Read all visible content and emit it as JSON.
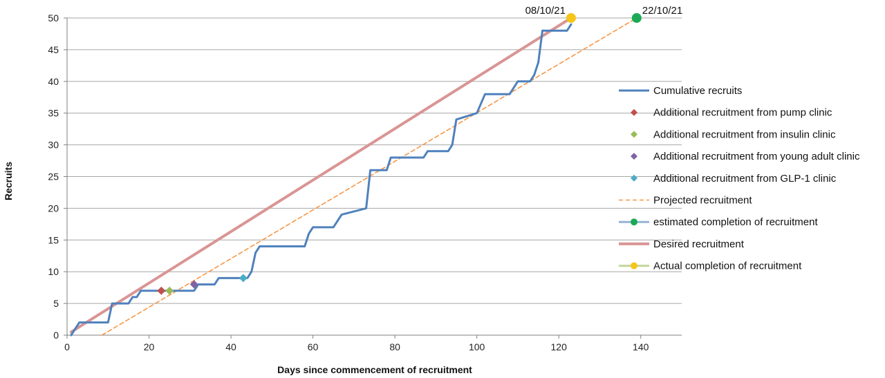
{
  "chart_data": {
    "type": "line",
    "title": "",
    "xlabel": "Days since commencement of recruitment",
    "ylabel": "Recruits",
    "xlim": [
      0,
      150
    ],
    "ylim": [
      0,
      50
    ],
    "xticks": [
      0,
      20,
      40,
      60,
      80,
      100,
      120,
      140
    ],
    "yticks": [
      0,
      5,
      10,
      15,
      20,
      25,
      30,
      35,
      40,
      45,
      50
    ],
    "grid": "horizontal",
    "legend_position": "right",
    "series": [
      {
        "name": "Cumulative recruits",
        "kind": "line",
        "color": "#4f81bd",
        "x": [
          1,
          3,
          10,
          11,
          15,
          16,
          17,
          18,
          31,
          32,
          36,
          37,
          44,
          45,
          46,
          47,
          58,
          59,
          60,
          65,
          67,
          73,
          74,
          78,
          79,
          80,
          87,
          88,
          93,
          94,
          95,
          100,
          102,
          108,
          110,
          113,
          114,
          115,
          116,
          122,
          123
        ],
        "y": [
          0,
          2,
          2,
          5,
          5,
          6,
          6,
          7,
          7,
          8,
          8,
          9,
          9,
          10,
          13,
          14,
          14,
          16,
          17,
          17,
          19,
          20,
          26,
          26,
          28,
          28,
          28,
          29,
          29,
          30,
          34,
          35,
          38,
          38,
          40,
          40,
          41,
          43,
          48,
          48,
          49
        ]
      },
      {
        "name": "Additional recruitment from pump clinic",
        "kind": "marker-diamond",
        "color": "#c0504d",
        "x": [
          23
        ],
        "y": [
          7
        ]
      },
      {
        "name": "Additional recruitment from insulin clinic",
        "kind": "marker-diamond",
        "color": "#9bbb59",
        "x": [
          25
        ],
        "y": [
          7
        ]
      },
      {
        "name": "Additional recruitment from young adult clinic",
        "kind": "marker-diamond",
        "color": "#8064a2",
        "x": [
          31
        ],
        "y": [
          8
        ]
      },
      {
        "name": "Additional recruitment from GLP-1 clinic",
        "kind": "marker-diamond",
        "color": "#4bacc6",
        "x": [
          43
        ],
        "y": [
          9
        ]
      },
      {
        "name": "Projected recruitment",
        "kind": "dashed-line",
        "color": "#f79646",
        "x": [
          8.5,
          139
        ],
        "y": [
          0,
          50
        ]
      },
      {
        "name": "estimated completion of recruitment",
        "kind": "marker-circle",
        "color": "#1aaa55",
        "legend_line_color": "#95b3d7",
        "x": [
          139
        ],
        "y": [
          50
        ]
      },
      {
        "name": "Desired recruitment",
        "kind": "line",
        "color": "#d99594",
        "x": [
          1,
          123
        ],
        "y": [
          0.5,
          50
        ]
      },
      {
        "name": "Actual completion of recruitment",
        "kind": "marker-circle",
        "color": "#f5c518",
        "legend_line_color": "#c3d69b",
        "x": [
          123
        ],
        "y": [
          50
        ]
      }
    ],
    "annotations": [
      {
        "text": "08/10/21",
        "x": 123,
        "y": 50
      },
      {
        "text": "22/10/21",
        "x": 139,
        "y": 50
      }
    ]
  }
}
